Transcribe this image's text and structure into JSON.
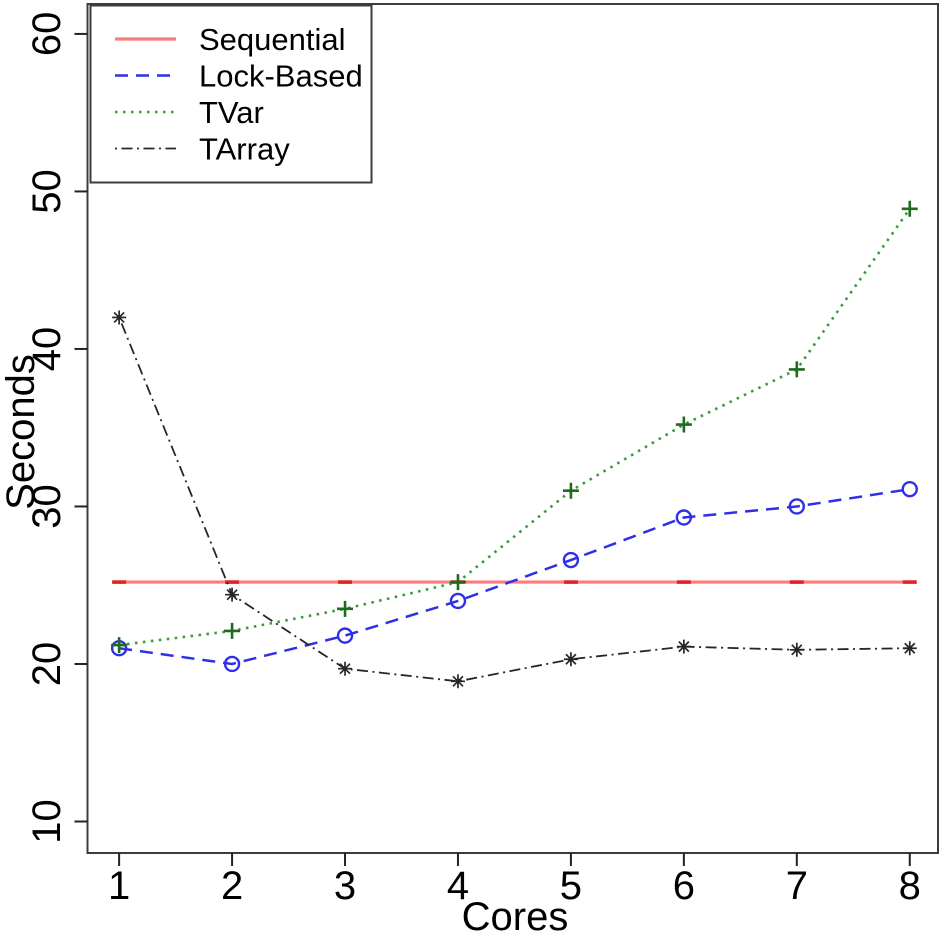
{
  "chart_data": {
    "type": "line",
    "title": "",
    "xlabel": "Cores",
    "ylabel": "Seconds",
    "x": [
      1,
      2,
      3,
      4,
      5,
      6,
      7,
      8
    ],
    "x_tick_labels": [
      "1",
      "2",
      "3",
      "4",
      "5",
      "6",
      "7",
      "8"
    ],
    "y_tick_values": [
      10,
      20,
      30,
      40,
      50,
      60
    ],
    "y_tick_labels": [
      "10",
      "20",
      "30",
      "40",
      "50",
      "60"
    ],
    "xlim": [
      0.72,
      8.25
    ],
    "ylim": [
      8.0,
      61.9
    ],
    "grid": false,
    "legend_position": "top-left",
    "series": [
      {
        "name": "Sequential",
        "line_style": "solid",
        "marker": "tick-dash",
        "color": "#ff7b7b",
        "marker_color": "#e32222",
        "values": [
          25.2,
          25.2,
          25.2,
          25.2,
          25.2,
          25.2,
          25.2,
          25.2
        ]
      },
      {
        "name": "Lock-Based",
        "line_style": "dashed",
        "marker": "circle",
        "color": "#2f2fe8",
        "marker_color": "#2f2fe8",
        "values": [
          21.0,
          20.0,
          21.8,
          24.0,
          26.6,
          29.3,
          30.0,
          31.1
        ]
      },
      {
        "name": "TVar",
        "line_style": "dotted",
        "marker": "plus",
        "color": "#379a37",
        "marker_color": "#1e6b1e",
        "values": [
          21.2,
          22.1,
          23.5,
          25.2,
          31.0,
          35.2,
          38.7,
          48.9
        ]
      },
      {
        "name": "TArray",
        "line_style": "dashdot",
        "marker": "asterisk",
        "color": "#262626",
        "marker_color": "#262626",
        "values": [
          42.0,
          24.4,
          19.7,
          18.9,
          20.3,
          21.1,
          20.9,
          21.0
        ]
      }
    ]
  },
  "colors": {
    "border": "#3c3c3c",
    "tick": "#222222",
    "text": "#000000",
    "background": "#ffffff"
  }
}
